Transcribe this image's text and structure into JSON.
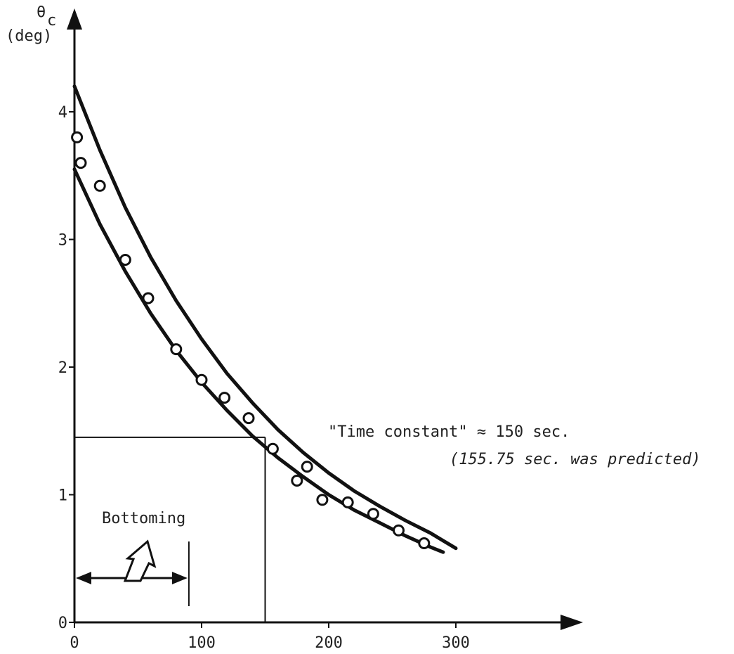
{
  "chart_data": {
    "type": "scatter",
    "ylabel_symbol": "θ",
    "ylabel_subscript": "c",
    "ylabel_unit": "(deg)",
    "xlim": [
      0,
      300
    ],
    "ylim": [
      0,
      4
    ],
    "x_ticks": [
      "0",
      "100",
      "200",
      "300"
    ],
    "y_ticks": [
      "0",
      "1",
      "2",
      "3",
      "4"
    ],
    "grid": false,
    "points": [
      {
        "x": 2,
        "y": 3.8
      },
      {
        "x": 5,
        "y": 3.6
      },
      {
        "x": 20,
        "y": 3.42
      },
      {
        "x": 40,
        "y": 2.84
      },
      {
        "x": 58,
        "y": 2.54
      },
      {
        "x": 80,
        "y": 2.14
      },
      {
        "x": 100,
        "y": 1.9
      },
      {
        "x": 118,
        "y": 1.76
      },
      {
        "x": 137,
        "y": 1.6
      },
      {
        "x": 156,
        "y": 1.36
      },
      {
        "x": 175,
        "y": 1.11
      },
      {
        "x": 183,
        "y": 1.22
      },
      {
        "x": 195,
        "y": 0.96
      },
      {
        "x": 215,
        "y": 0.94
      },
      {
        "x": 235,
        "y": 0.85
      },
      {
        "x": 255,
        "y": 0.72
      },
      {
        "x": 275,
        "y": 0.62
      }
    ],
    "curves": [
      {
        "x": [
          0,
          20,
          40,
          60,
          80,
          100,
          120,
          140,
          160,
          180,
          200,
          220,
          240,
          260,
          280,
          300
        ],
        "y": [
          4.2,
          3.7,
          3.25,
          2.86,
          2.52,
          2.22,
          1.95,
          1.72,
          1.51,
          1.33,
          1.17,
          1.03,
          0.91,
          0.8,
          0.7,
          0.58
        ]
      },
      {
        "x": [
          0,
          20,
          40,
          60,
          80,
          100,
          120,
          140,
          160,
          180,
          200,
          220,
          240,
          260,
          280,
          290
        ],
        "y": [
          3.55,
          3.12,
          2.75,
          2.42,
          2.13,
          1.88,
          1.66,
          1.46,
          1.29,
          1.14,
          1.0,
          0.88,
          0.78,
          0.68,
          0.59,
          0.55
        ]
      }
    ],
    "time_constant_marker": {
      "x": 150,
      "y": 1.45
    },
    "bottoming_range": {
      "x_start": 0,
      "x_end": 90
    }
  },
  "annotations": {
    "time_constant": "\"Time constant\" ≈  150 sec.",
    "predicted": "(155.75 sec. was predicted)",
    "bottoming": "Bottoming"
  }
}
